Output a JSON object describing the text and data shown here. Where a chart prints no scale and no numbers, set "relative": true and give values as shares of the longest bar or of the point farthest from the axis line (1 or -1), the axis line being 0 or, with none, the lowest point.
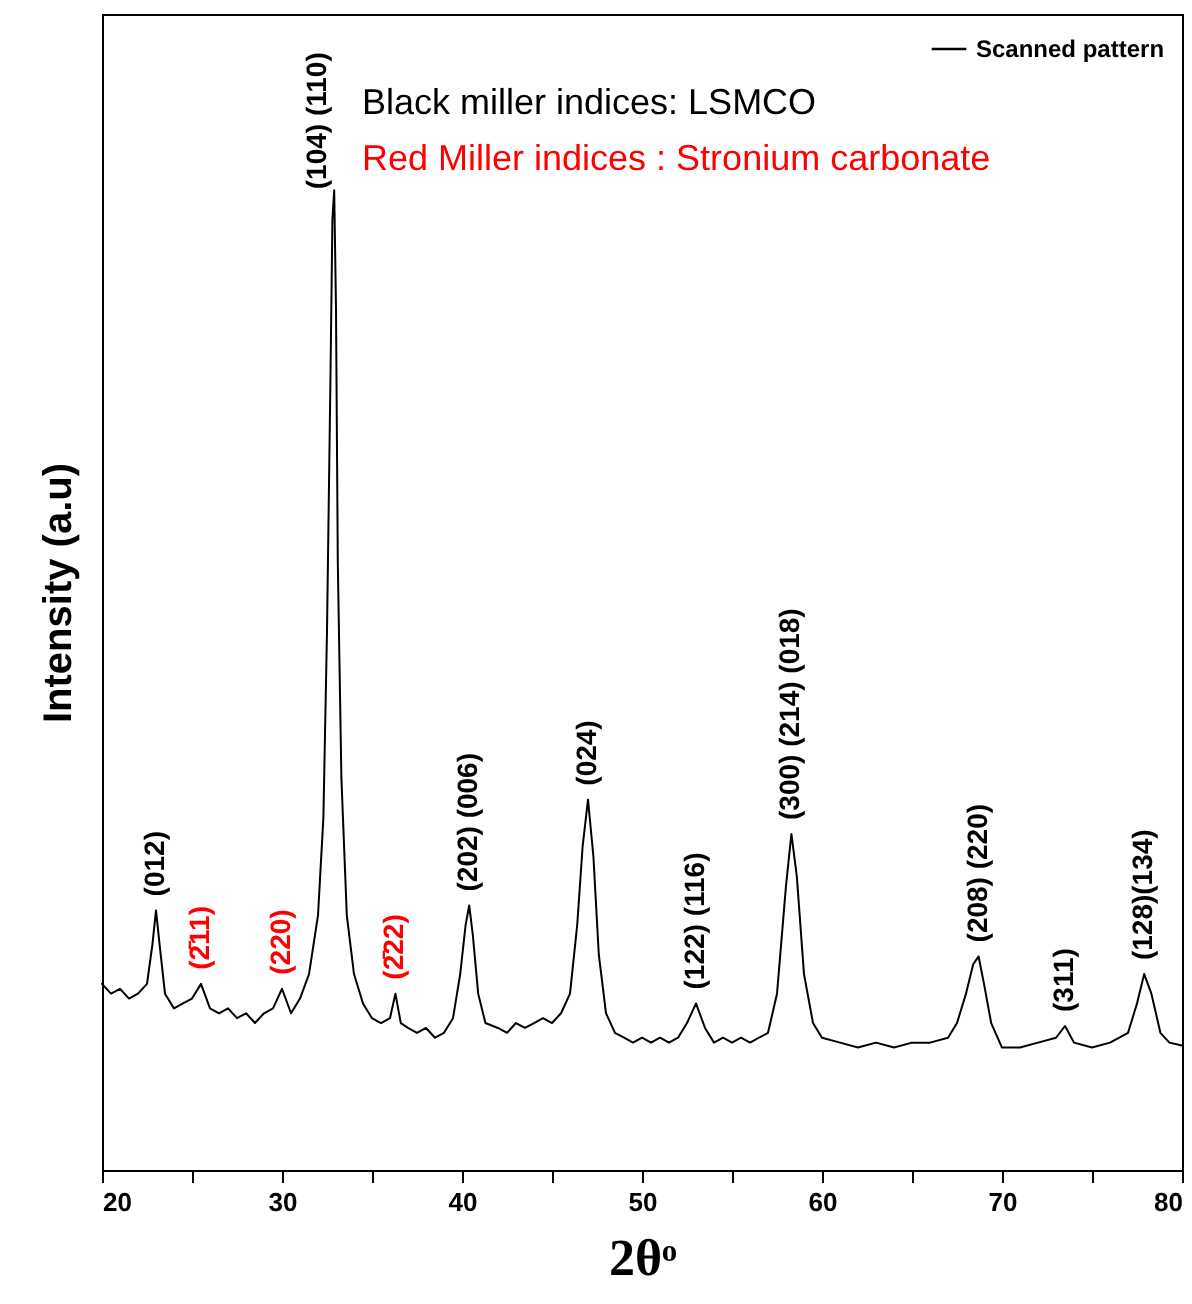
{
  "chart_data": {
    "type": "line",
    "relative": true,
    "xlabel": "2θᵒ",
    "ylabel": "Intensity (a.u)",
    "xlim": [
      20,
      80
    ],
    "xticks": [
      20,
      {
        "value": 25,
        "label": null
      },
      30,
      {
        "value": 35,
        "label": null
      },
      40,
      {
        "value": 45,
        "label": null
      },
      50,
      {
        "value": 55,
        "label": null
      },
      60,
      {
        "value": 65,
        "label": null
      },
      70,
      {
        "value": 75,
        "label": null
      },
      80
    ],
    "legend": "top right",
    "grid": false,
    "x": [
      20,
      20.5,
      21,
      21.5,
      22,
      22.5,
      22.8,
      23.0,
      23.2,
      23.5,
      24,
      24.5,
      25,
      25.5,
      26,
      26.5,
      27,
      27.5,
      28,
      28.5,
      29,
      29.5,
      30,
      30.5,
      31,
      31.5,
      32,
      32.3,
      32.5,
      32.7,
      32.8,
      32.9,
      33.0,
      33.1,
      33.3,
      33.6,
      34,
      34.5,
      35,
      35.5,
      36,
      36.3,
      36.6,
      37,
      37.5,
      38,
      38.5,
      39,
      39.5,
      39.9,
      40.2,
      40.4,
      40.6,
      40.9,
      41.3,
      42,
      42.5,
      43,
      43.5,
      44,
      44.5,
      45,
      45.5,
      46,
      46.4,
      46.7,
      47.0,
      47.3,
      47.6,
      48,
      48.5,
      49,
      49.5,
      50,
      50.5,
      51,
      51.5,
      52,
      52.5,
      53,
      53.5,
      54,
      54.5,
      55,
      55.5,
      56,
      56.5,
      57,
      57.5,
      58,
      58.3,
      58.6,
      59,
      59.5,
      60,
      61,
      62,
      63,
      64,
      65,
      66,
      67,
      67.5,
      68,
      68.4,
      68.7,
      69,
      69.4,
      70,
      71,
      72,
      73,
      73.5,
      74,
      75,
      76,
      77,
      77.5,
      77.9,
      78.3,
      78.8,
      79.3,
      80
    ],
    "series": [
      {
        "name": "Scanned pattern",
        "color": "#000000",
        "values": [
          0.19,
          0.18,
          0.185,
          0.175,
          0.18,
          0.19,
          0.23,
          0.265,
          0.23,
          0.18,
          0.165,
          0.17,
          0.175,
          0.19,
          0.165,
          0.16,
          0.165,
          0.155,
          0.16,
          0.15,
          0.16,
          0.165,
          0.185,
          0.16,
          0.175,
          0.2,
          0.26,
          0.36,
          0.55,
          0.82,
          0.97,
          1,
          0.88,
          0.62,
          0.4,
          0.26,
          0.2,
          0.17,
          0.155,
          0.15,
          0.155,
          0.18,
          0.15,
          0.145,
          0.14,
          0.145,
          0.135,
          0.14,
          0.155,
          0.2,
          0.25,
          0.27,
          0.24,
          0.18,
          0.15,
          0.145,
          0.14,
          0.15,
          0.145,
          0.15,
          0.155,
          0.15,
          0.16,
          0.18,
          0.25,
          0.33,
          0.378,
          0.32,
          0.22,
          0.16,
          0.14,
          0.135,
          0.13,
          0.135,
          0.13,
          0.135,
          0.13,
          0.135,
          0.15,
          0.17,
          0.145,
          0.13,
          0.135,
          0.13,
          0.135,
          0.13,
          0.135,
          0.14,
          0.18,
          0.29,
          0.343,
          0.3,
          0.2,
          0.15,
          0.135,
          0.13,
          0.125,
          0.13,
          0.125,
          0.13,
          0.13,
          0.135,
          0.15,
          0.18,
          0.21,
          0.218,
          0.19,
          0.15,
          0.125,
          0.125,
          0.13,
          0.135,
          0.147,
          0.13,
          0.125,
          0.13,
          0.14,
          0.17,
          0.2,
          0.18,
          0.14,
          0.13,
          0.127
        ]
      }
    ],
    "annotations": [
      "Black miller indices: LSMCO",
      "Red Miller indices : Stronium carbonate",
      {
        "text": "(012)",
        "x": 23.0,
        "y": 0.265
      },
      {
        "text": "(2̄11)",
        "x": 25.5,
        "y": 0.19
      },
      {
        "text": "(220)",
        "x": 30,
        "y": 0.185
      },
      {
        "text": "(104) (110)",
        "x": 32.9,
        "y": 1
      },
      {
        "text": "(2̄22)",
        "x": 36.3,
        "y": 0.18
      },
      {
        "text": "(202) (006)",
        "x": 40.4,
        "y": 0.27
      },
      {
        "text": "(024)",
        "x": 47.0,
        "y": 0.378
      },
      {
        "text": "(122)   (116)",
        "x": 53,
        "y": 0.17
      },
      {
        "text": "(300) (214) (018)",
        "x": 58.3,
        "y": 0.343
      },
      {
        "text": "(208) (220)",
        "x": 68.7,
        "y": 0.218
      },
      {
        "text": "(311)",
        "x": 73.5,
        "y": 0.147
      },
      {
        "text": "(128)(134)",
        "x": 77.9,
        "y": 0.2
      }
    ]
  }
}
